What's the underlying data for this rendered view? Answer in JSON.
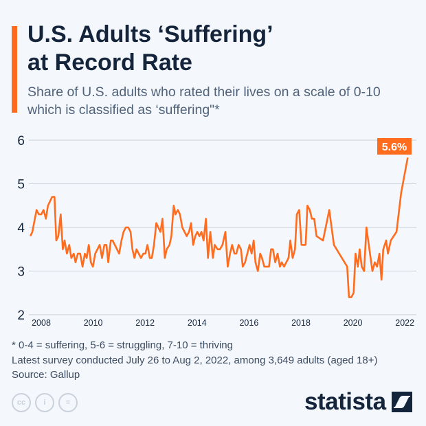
{
  "header": {
    "title_line1": "U.S. Adults ‘Suffering’",
    "title_line2": "at Record Rate",
    "subtitle": "Share of U.S. adults who rated their lives on a scale of 0-10 which is classified as ‘suffering\"*"
  },
  "chart_data": {
    "type": "line",
    "title": "U.S. Adults ‘Suffering’ at Record Rate",
    "xlabel": "",
    "ylabel": "",
    "ylim": [
      2,
      6
    ],
    "xlim": [
      2007.5,
      2022.2
    ],
    "y_ticks": [
      "2",
      "3",
      "4",
      "5",
      "6"
    ],
    "x_ticks": [
      "2008",
      "2010",
      "2012",
      "2014",
      "2016",
      "2018",
      "2020",
      "2022"
    ],
    "grid": true,
    "line_color": "#ff6c1e",
    "annotation": "5.6%",
    "x": [
      2007.58,
      2007.66,
      2007.82,
      2007.91,
      2008.0,
      2008.09,
      2008.18,
      2008.26,
      2008.42,
      2008.51,
      2008.58,
      2008.66,
      2008.75,
      2008.83,
      2008.9,
      2008.99,
      2009.08,
      2009.16,
      2009.25,
      2009.32,
      2009.41,
      2009.5,
      2009.59,
      2009.68,
      2009.75,
      2009.83,
      2009.91,
      2009.99,
      2010.08,
      2010.25,
      2010.34,
      2010.43,
      2010.51,
      2010.58,
      2010.68,
      2010.75,
      2011.0,
      2011.09,
      2011.17,
      2011.26,
      2011.35,
      2011.44,
      2011.51,
      2011.59,
      2011.67,
      2011.84,
      2011.93,
      2012.01,
      2012.09,
      2012.18,
      2012.26,
      2012.34,
      2012.43,
      2012.59,
      2012.67,
      2012.76,
      2012.83,
      2012.94,
      2013.01,
      2013.1,
      2013.17,
      2013.26,
      2013.34,
      2013.43,
      2013.6,
      2013.69,
      2013.77,
      2013.85,
      2013.93,
      2014.01,
      2014.09,
      2014.17,
      2014.25,
      2014.34,
      2014.42,
      2014.51,
      2014.61,
      2014.68,
      2014.79,
      2014.88,
      2014.98,
      2015.09,
      2015.18,
      2015.27,
      2015.35,
      2015.44,
      2015.51,
      2015.6,
      2015.69,
      2015.76,
      2015.85,
      2016.02,
      2016.1,
      2016.18,
      2016.25,
      2016.34,
      2016.43,
      2016.5,
      2016.59,
      2016.77,
      2016.85,
      2016.92,
      2017.01,
      2017.1,
      2017.19,
      2017.26,
      2017.35,
      2017.52,
      2017.59,
      2017.68,
      2017.77,
      2017.84,
      2017.93,
      2018.02,
      2018.18,
      2018.25,
      2018.34,
      2018.42,
      2018.51,
      2018.6,
      2018.85,
      2019.09,
      2019.27,
      2019.78,
      2019.85,
      2019.94,
      2020.03,
      2020.1,
      2020.19,
      2020.26,
      2020.34,
      2020.43,
      2020.52,
      2020.66,
      2020.75,
      2020.84,
      2020.93,
      2021.02,
      2021.1,
      2021.17,
      2021.28,
      2021.35,
      2021.46,
      2021.68,
      2021.86,
      2022.11
    ],
    "y": [
      3.8,
      3.9,
      4.4,
      4.3,
      4.3,
      4.4,
      4.2,
      4.5,
      4.7,
      4.7,
      3.7,
      3.8,
      4.3,
      3.5,
      3.7,
      3.4,
      3.6,
      3.3,
      3.4,
      3.2,
      3.4,
      3.4,
      3.1,
      3.4,
      3.3,
      3.6,
      3.2,
      3.1,
      3.4,
      3.6,
      3.3,
      3.6,
      3.6,
      3.2,
      3.7,
      3.7,
      3.4,
      3.7,
      3.9,
      4.0,
      4.0,
      3.9,
      3.5,
      3.3,
      3.5,
      3.3,
      3.4,
      3.4,
      3.6,
      3.3,
      3.3,
      3.6,
      4.1,
      3.9,
      4.2,
      3.3,
      3.5,
      3.6,
      3.8,
      4.5,
      4.3,
      4.4,
      4.3,
      4.0,
      3.8,
      3.9,
      4.1,
      3.6,
      3.8,
      3.9,
      3.8,
      3.9,
      3.7,
      4.2,
      3.3,
      3.9,
      3.3,
      3.6,
      3.5,
      3.5,
      3.6,
      3.9,
      3.1,
      3.4,
      3.6,
      3.4,
      3.4,
      3.6,
      3.5,
      3.1,
      3.2,
      3.6,
      3.4,
      3.7,
      3.2,
      3.0,
      3.4,
      3.3,
      3.1,
      3.1,
      3.5,
      3.5,
      3.2,
      3.4,
      3.1,
      3.2,
      3.1,
      3.3,
      3.7,
      3.3,
      3.5,
      4.3,
      4.4,
      3.6,
      3.6,
      4.5,
      4.4,
      4.2,
      4.2,
      3.8,
      3.7,
      4.4,
      3.6,
      3.1,
      2.4,
      2.4,
      2.5,
      3.4,
      3.1,
      3.5,
      3.1,
      3.0,
      4.0,
      3.4,
      3.0,
      3.2,
      3.1,
      3.4,
      2.8,
      3.5,
      3.7,
      3.4,
      3.7,
      3.9,
      4.8,
      5.6
    ]
  },
  "footer": {
    "note": "* 0-4 = suffering, 5-6 = struggling, 7-10 = thriving",
    "survey": "Latest survey conducted July 26 to Aug 2, 2022, among 3,649 adults (aged 18+)",
    "source": "Source: Gallup",
    "license_icons": [
      "cc-icon",
      "attribution-icon",
      "no-derivatives-icon"
    ],
    "license_glyphs": [
      "cc",
      "i",
      "="
    ],
    "brand": "statista"
  }
}
